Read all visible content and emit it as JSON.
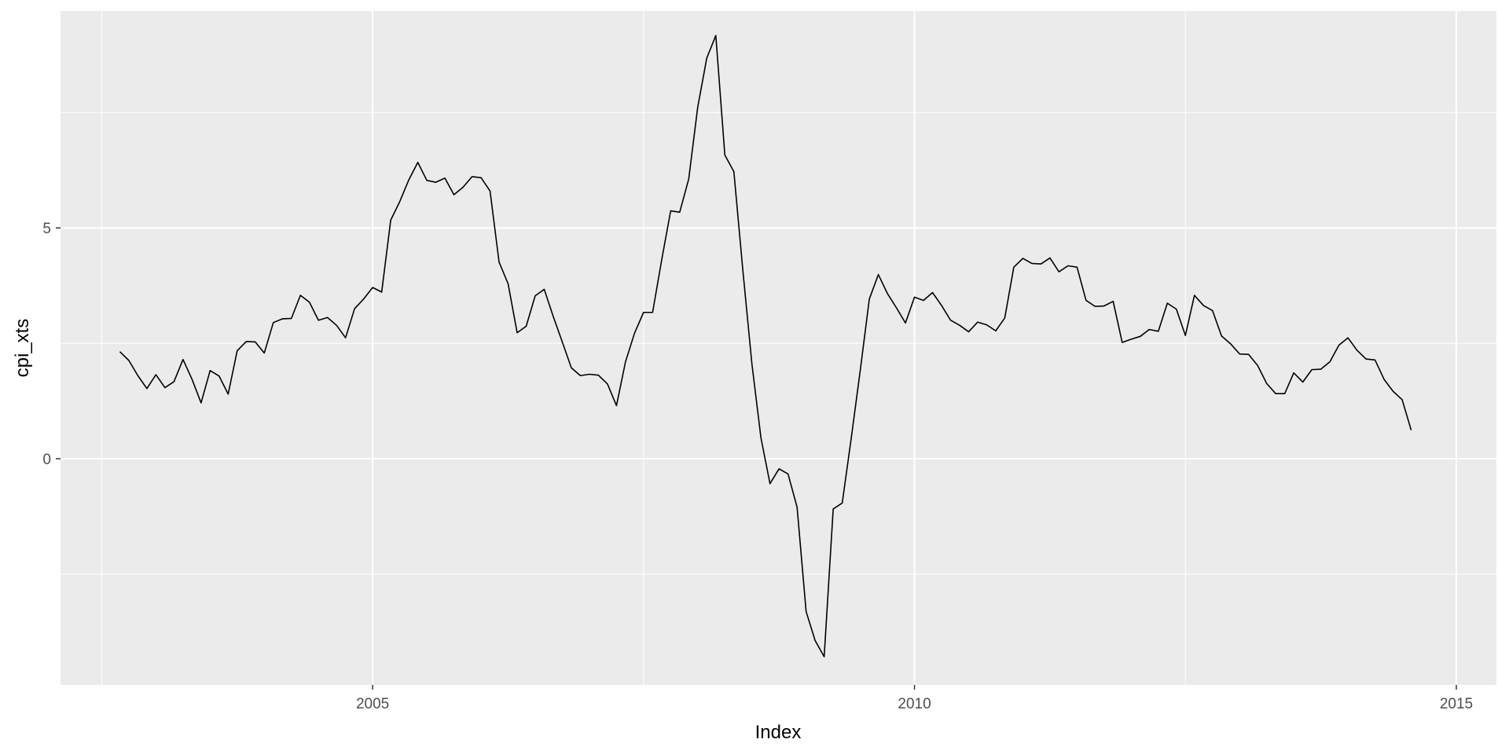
{
  "chart_data": {
    "type": "line",
    "xlabel": "Index",
    "ylabel": "cpi_xts",
    "xlim": [
      2002.12,
      2015.37
    ],
    "ylim": [
      -4.9,
      9.7
    ],
    "grid": true,
    "colors": {
      "panel": "#ebebeb",
      "grid": "#ffffff",
      "line": "#000000",
      "tick_label": "#4d4d4d"
    },
    "x_ticks": [
      {
        "value": 2005,
        "label": "2005"
      },
      {
        "value": 2010,
        "label": "2010"
      },
      {
        "value": 2015,
        "label": "2015"
      }
    ],
    "y_ticks": [
      {
        "value": 0,
        "label": "0"
      },
      {
        "value": 5,
        "label": "5"
      }
    ],
    "x_minor": [
      2002.5,
      2007.5,
      2012.5
    ],
    "y_minor": [
      -2.5,
      2.5,
      7.5
    ],
    "series": [
      {
        "x_start": 2002.667,
        "x_step": 0.08333,
        "values": [
          2.32,
          2.13,
          1.8,
          1.52,
          1.82,
          1.54,
          1.67,
          2.15,
          1.72,
          1.21,
          1.91,
          1.79,
          1.4,
          2.34,
          2.54,
          2.53,
          2.29,
          2.95,
          3.03,
          3.04,
          3.54,
          3.39,
          3.0,
          3.06,
          2.89,
          2.62,
          3.25,
          3.46,
          3.71,
          3.61,
          5.17,
          5.57,
          6.04,
          6.42,
          6.03,
          5.99,
          6.08,
          5.72,
          5.88,
          6.11,
          6.09,
          5.8,
          4.26,
          3.79,
          2.73,
          2.87,
          3.53,
          3.67,
          3.08,
          2.53,
          1.97,
          1.8,
          1.83,
          1.81,
          1.62,
          1.15,
          2.1,
          2.72,
          3.17,
          3.17,
          4.3,
          5.37,
          5.34,
          6.06,
          7.62,
          8.68,
          9.17,
          6.58,
          6.22,
          4.07,
          2.05,
          0.45,
          -0.54,
          -0.22,
          -0.33,
          -1.05,
          -3.31,
          -3.94,
          -4.29,
          -1.09,
          -0.96,
          0.45,
          1.92,
          3.46,
          3.99,
          3.58,
          3.27,
          2.94,
          3.5,
          3.43,
          3.6,
          3.32,
          3.0,
          2.89,
          2.75,
          2.96,
          2.9,
          2.77,
          3.05,
          4.15,
          4.34,
          4.23,
          4.22,
          4.35,
          4.05,
          4.18,
          4.15,
          3.43,
          3.3,
          3.31,
          3.41,
          2.52,
          2.59,
          2.65,
          2.8,
          2.76,
          3.37,
          3.24,
          2.67,
          3.54,
          3.32,
          3.21,
          2.66,
          2.49,
          2.27,
          2.26,
          2.02,
          1.63,
          1.41,
          1.41,
          1.86,
          1.66,
          1.93,
          1.94,
          2.1,
          2.46,
          2.62,
          2.35,
          2.16,
          2.14,
          1.72,
          1.46,
          1.28,
          0.62
        ]
      }
    ]
  }
}
